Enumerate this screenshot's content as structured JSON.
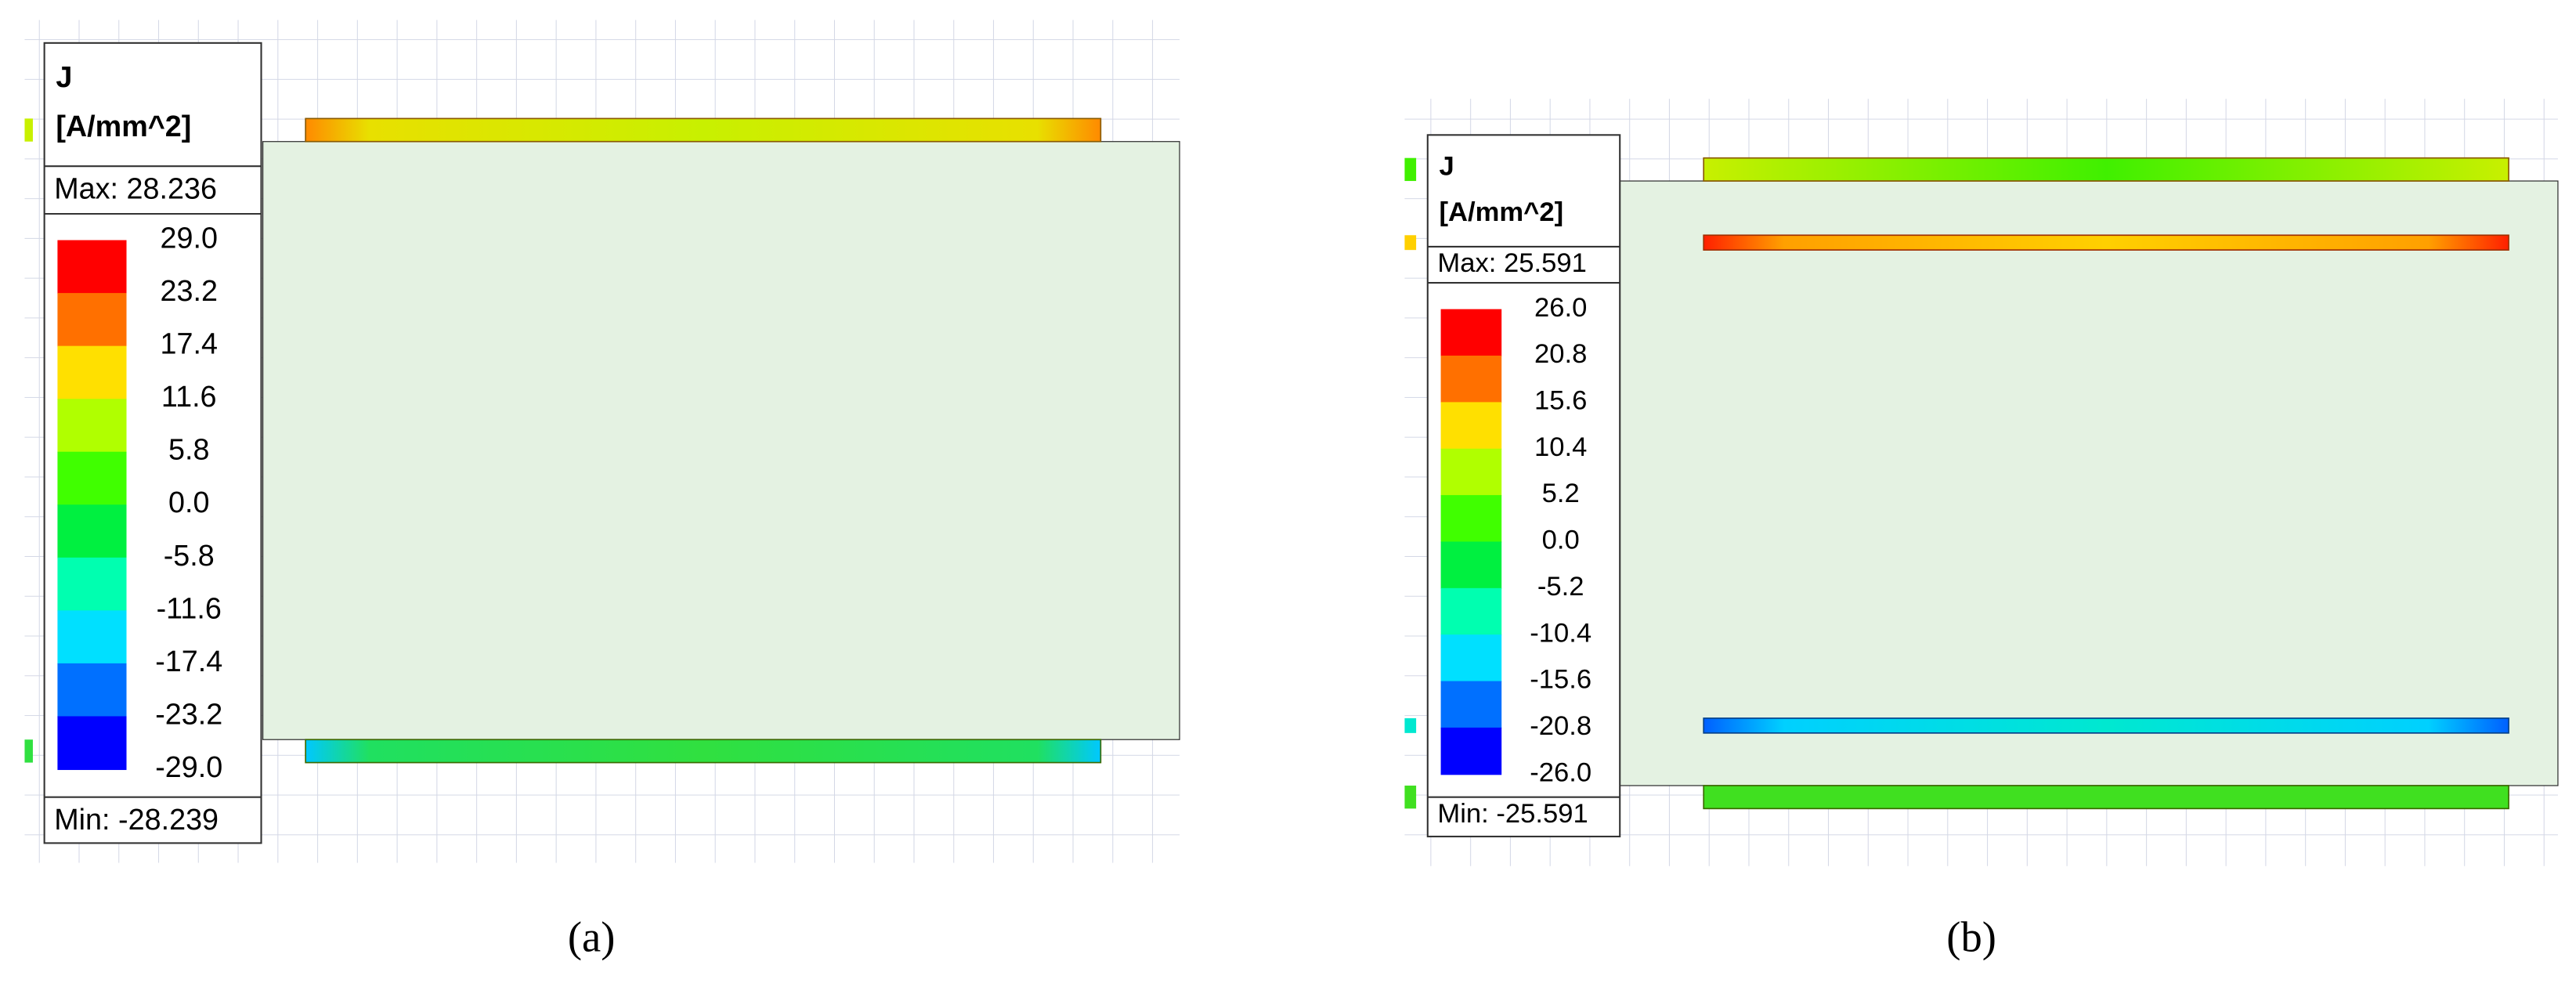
{
  "panels": [
    {
      "legend": {
        "title": "J",
        "unit": "[A/mm^2]",
        "max": "Max: 28.236",
        "ticks": [
          "29.0",
          "23.2",
          "17.4",
          "11.6",
          "5.8",
          "0.0",
          "-5.8",
          "-11.6",
          "-17.4",
          "-23.2",
          "-29.0"
        ],
        "min": "Min: -28.239"
      },
      "caption": "(a)"
    },
    {
      "legend": {
        "title": "J",
        "unit": "[A/mm^2]",
        "max": "Max: 25.591",
        "ticks": [
          "26.0",
          "20.8",
          "15.6",
          "10.4",
          "5.2",
          "0.0",
          "-5.2",
          "-10.4",
          "-15.6",
          "-20.8",
          "-26.0"
        ],
        "min": "Min: -25.591"
      },
      "caption": "(b)"
    }
  ]
}
